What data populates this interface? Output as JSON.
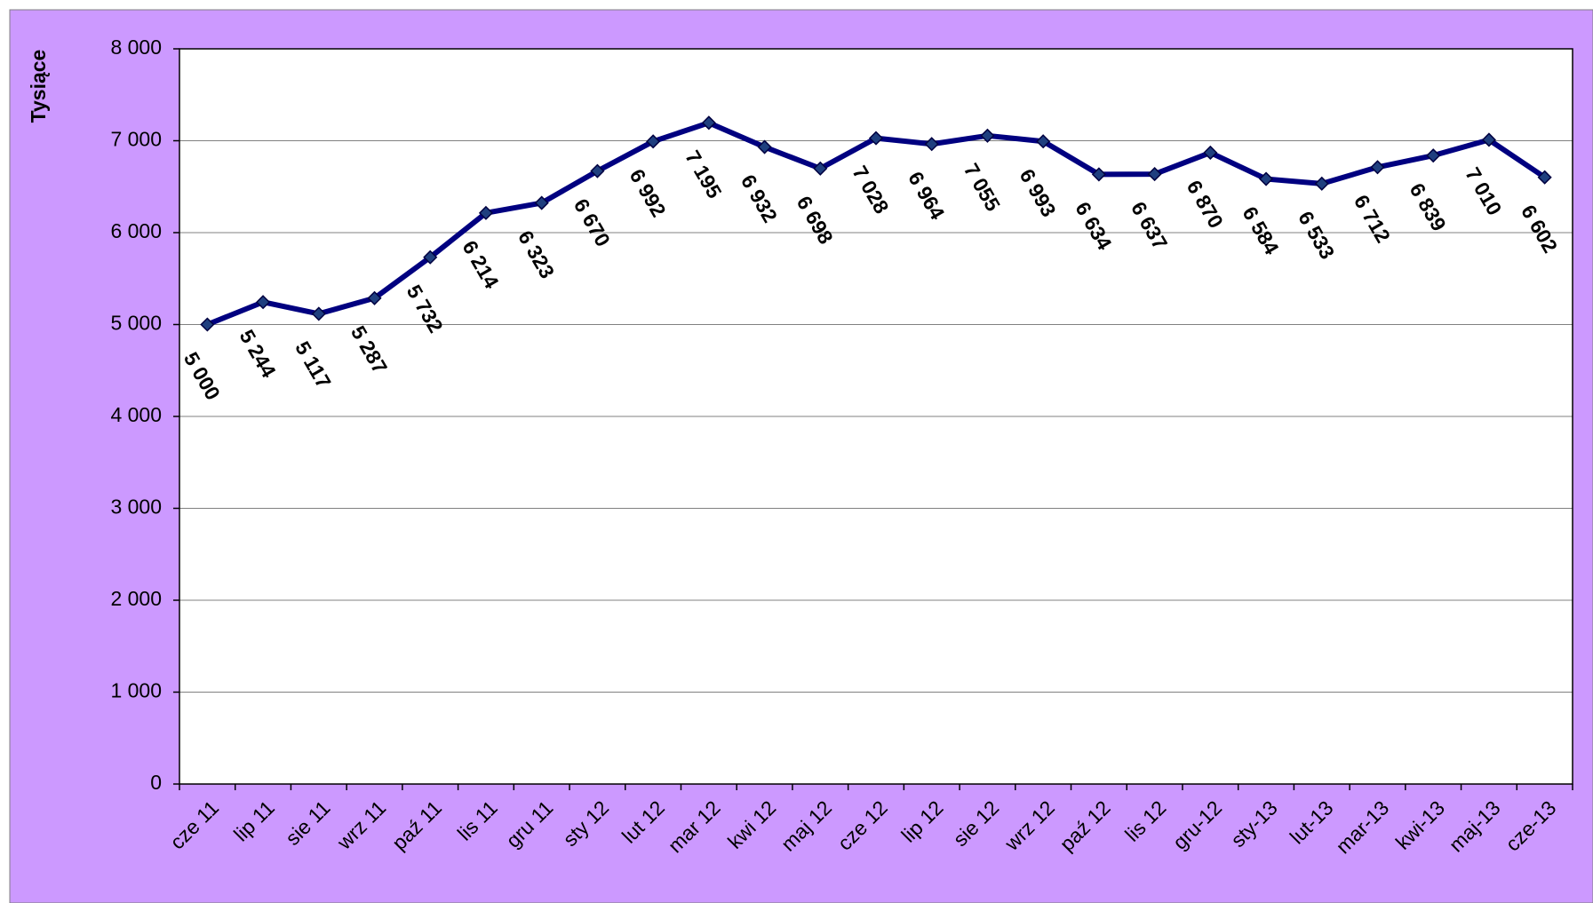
{
  "chart_data": {
    "type": "line",
    "y_label": "Tysiące",
    "categories": [
      "cze 11",
      "lip 11",
      "sie 11",
      "wrz 11",
      "paź 11",
      "lis 11",
      "gru 11",
      "sty 12",
      "lut 12",
      "mar 12",
      "kwi 12",
      "maj 12",
      "cze 12",
      "lip 12",
      "sie 12",
      "wrz 12",
      "paź 12",
      "lis 12",
      "gru-12",
      "sty-13",
      "lut-13",
      "mar-13",
      "kwi-13",
      "maj-13",
      "cze-13"
    ],
    "series": [
      {
        "color": "#000080",
        "values": [
          5000,
          5244,
          5117,
          5287,
          5732,
          6214,
          6323,
          6670,
          6992,
          7195,
          6932,
          6698,
          7028,
          6964,
          7055,
          6993,
          6634,
          6637,
          6870,
          6584,
          6533,
          6712,
          6839,
          7010,
          6602
        ],
        "value_labels": [
          "5 000",
          "5 244",
          "5 117",
          "5 287",
          "5 732",
          "6 214",
          "6 323",
          "6 670",
          "6 992",
          "7 195",
          "6 932",
          "6 698",
          "7 028",
          "6 964",
          "7 055",
          "6 993",
          "6 634",
          "6 637",
          "6 870",
          "6 584",
          "6 533",
          "6 712",
          "6 839",
          "7 010",
          "6 602"
        ]
      }
    ],
    "ylim": [
      0,
      8000
    ],
    "yticks": [
      {
        "value": 0,
        "label": "0"
      },
      {
        "value": 1000,
        "label": "1 000"
      },
      {
        "value": 2000,
        "label": "2 000"
      },
      {
        "value": 3000,
        "label": "3 000"
      },
      {
        "value": 4000,
        "label": "4 000"
      },
      {
        "value": 5000,
        "label": "5 000"
      },
      {
        "value": 6000,
        "label": "6 000"
      },
      {
        "value": 7000,
        "label": "7 000"
      },
      {
        "value": 8000,
        "label": "8 000"
      }
    ],
    "grid": true
  }
}
